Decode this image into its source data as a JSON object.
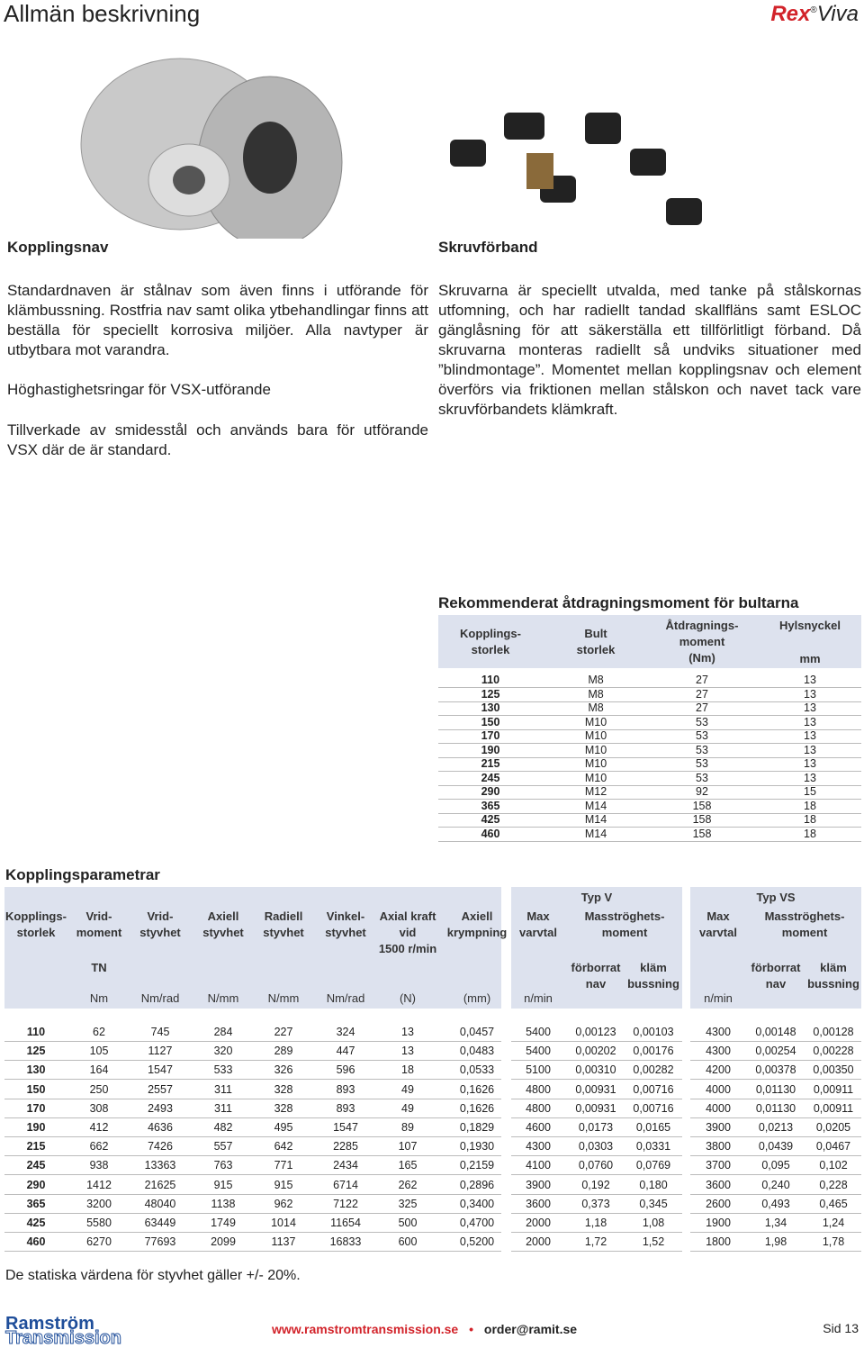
{
  "header": {
    "title": "Allmän beskrivning",
    "logo": {
      "brand": "Rex",
      "mark": "®",
      "product": "Viva"
    }
  },
  "left": {
    "heading": "Kopplingsnav",
    "paragraph": "Standardnaven är stålnav som även finns i utförande för klämbussning. Rostfria nav samt olika ytbehandlingar finns att beställa för speciellt korrosiva miljöer. Alla navtyper är utbytbara mot varandra.",
    "subheading": "Höghastighetsringar för VSX-utförande",
    "paragraph2": "Tillverkade av smidesstål och används bara för utförande VSX där de är standard."
  },
  "right": {
    "heading": "Skruvförband",
    "paragraph": "Skruvarna är speciellt utvalda, med tanke på stålskornas utfomning, och har radiellt tandad skallfläns samt ESLOC gänglåsning för att säkerställa ett tillförlitligt förband. Då skruvarna monteras radiellt så undviks situationer med ”blindmontage”. Momentet mellan kopplingsnav och element överförs via friktionen mellan stålskon och navet tack vare skruvförbandets klämkraft."
  },
  "torque_table": {
    "title": "Rekommenderat åtdragningsmoment för bultarna",
    "columns": [
      {
        "lines": [
          "Kopplings-",
          "storlek"
        ]
      },
      {
        "lines": [
          "Bult",
          "storlek"
        ]
      },
      {
        "lines": [
          "Åtdragnings-",
          "moment",
          "(Nm)"
        ]
      },
      {
        "lines": [
          "Hylsnyckel"
        ],
        "unit": "mm"
      }
    ],
    "rows": [
      [
        110,
        "M8",
        27,
        13
      ],
      [
        125,
        "M8",
        27,
        13
      ],
      [
        130,
        "M8",
        27,
        13
      ],
      [
        150,
        "M10",
        53,
        13
      ],
      [
        170,
        "M10",
        53,
        13
      ],
      [
        190,
        "M10",
        53,
        13
      ],
      [
        215,
        "M10",
        53,
        13
      ],
      [
        245,
        "M10",
        53,
        13
      ],
      [
        290,
        "M12",
        92,
        15
      ],
      [
        365,
        "M14",
        158,
        18
      ],
      [
        425,
        "M14",
        158,
        18
      ],
      [
        460,
        "M14",
        158,
        18
      ]
    ]
  },
  "params_table": {
    "title": "Kopplingsparametrar",
    "columns": [
      {
        "lines": [
          "Kopplings-",
          "storlek"
        ]
      },
      {
        "lines": [
          "Vrid-",
          "moment"
        ],
        "sub": "TN",
        "unit": "Nm"
      },
      {
        "lines": [
          "Vrid-",
          "styvhet"
        ],
        "unit": "Nm/rad"
      },
      {
        "lines": [
          "Axiell",
          "styvhet"
        ],
        "unit": "N/mm"
      },
      {
        "lines": [
          "Radiell",
          "styvhet"
        ],
        "unit": "N/mm"
      },
      {
        "lines": [
          "Vinkel-",
          "styvhet"
        ],
        "unit": "Nm/rad"
      },
      {
        "lines": [
          "Axial kraft",
          "vid",
          "1500 r/min"
        ],
        "unit": "(N)"
      },
      {
        "lines": [
          "Axiell",
          "krympning"
        ],
        "unit": "(mm)"
      }
    ],
    "rows": [
      [
        110,
        62,
        745,
        284,
        227,
        324,
        13,
        "0,0457"
      ],
      [
        125,
        105,
        1127,
        320,
        289,
        447,
        13,
        "0,0483"
      ],
      [
        130,
        164,
        1547,
        533,
        326,
        596,
        18,
        "0,0533"
      ],
      [
        150,
        250,
        2557,
        311,
        328,
        893,
        49,
        "0,1626"
      ],
      [
        170,
        308,
        2493,
        311,
        328,
        893,
        49,
        "0,1626"
      ],
      [
        190,
        412,
        4636,
        482,
        495,
        1547,
        89,
        "0,1829"
      ],
      [
        215,
        662,
        7426,
        557,
        642,
        2285,
        107,
        "0,1930"
      ],
      [
        245,
        938,
        13363,
        763,
        771,
        2434,
        165,
        "0,2159"
      ],
      [
        290,
        1412,
        21625,
        915,
        915,
        6714,
        262,
        "0,2896"
      ],
      [
        365,
        3200,
        48040,
        1138,
        962,
        7122,
        325,
        "0,3400"
      ],
      [
        425,
        5580,
        63449,
        1749,
        1014,
        11654,
        500,
        "0,4700"
      ],
      [
        460,
        6270,
        77693,
        2099,
        1137,
        16833,
        600,
        "0,5200"
      ]
    ],
    "groups": [
      {
        "title": "Typ V",
        "max": [
          "Max",
          "varvtal"
        ],
        "max_unit": "n/min",
        "inertia": [
          "Masströghets-",
          "moment"
        ],
        "subcols": [
          [
            "förborrat",
            "nav"
          ],
          [
            "kläm",
            "bussning"
          ]
        ],
        "rows": [
          [
            5400,
            "0,00123",
            "0,00103"
          ],
          [
            5400,
            "0,00202",
            "0,00176"
          ],
          [
            5100,
            "0,00310",
            "0,00282"
          ],
          [
            4800,
            "0,00931",
            "0,00716"
          ],
          [
            4800,
            "0,00931",
            "0,00716"
          ],
          [
            4600,
            "0,0173",
            "0,0165"
          ],
          [
            4300,
            "0,0303",
            "0,0331"
          ],
          [
            4100,
            "0,0760",
            "0,0769"
          ],
          [
            3900,
            "0,192",
            "0,180"
          ],
          [
            3600,
            "0,373",
            "0,345"
          ],
          [
            2000,
            "1,18",
            "1,08"
          ],
          [
            2000,
            "1,72",
            "1,52"
          ]
        ]
      },
      {
        "title": "Typ VS",
        "max": [
          "Max",
          "varvtal"
        ],
        "max_unit": "n/min",
        "inertia": [
          "Masströghets-",
          "moment"
        ],
        "subcols": [
          [
            "förborrat",
            "nav"
          ],
          [
            "kläm",
            "bussning"
          ]
        ],
        "rows": [
          [
            4300,
            "0,00148",
            "0,00128"
          ],
          [
            4300,
            "0,00254",
            "0,00228"
          ],
          [
            4200,
            "0,00378",
            "0,00350"
          ],
          [
            4000,
            "0,01130",
            "0,00911"
          ],
          [
            4000,
            "0,01130",
            "0,00911"
          ],
          [
            3900,
            "0,0213",
            "0,0205"
          ],
          [
            3800,
            "0,0439",
            "0,0467"
          ],
          [
            3700,
            "0,095",
            "0,102"
          ],
          [
            3600,
            "0,240",
            "0,228"
          ],
          [
            2600,
            "0,493",
            "0,465"
          ],
          [
            1900,
            "1,34",
            "1,24"
          ],
          [
            1800,
            "1,98",
            "1,78"
          ]
        ]
      }
    ],
    "note": "De statiska värdena för styvhet gäller +/- 20%."
  },
  "footer": {
    "company": "Ramström",
    "company2": "Transmission",
    "url": "www.ramstromtransmission.se",
    "separator": "•",
    "email": "order@ramit.se",
    "page": "Sid 13"
  }
}
